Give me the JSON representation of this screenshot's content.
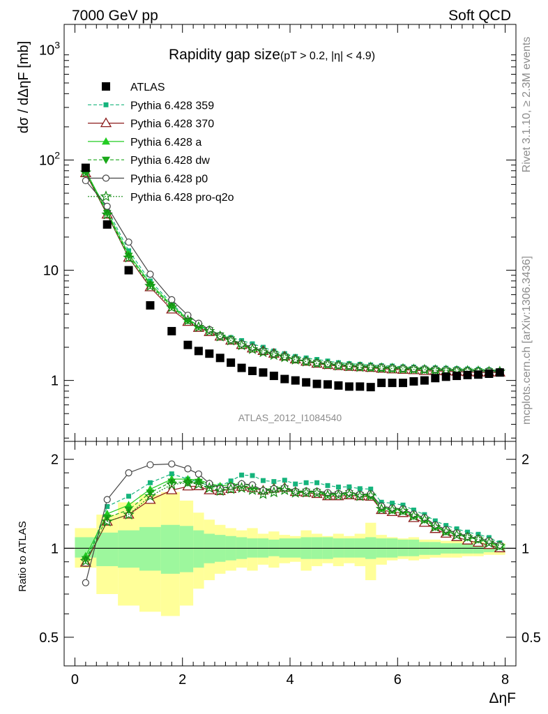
{
  "header": {
    "left": "7000 GeV pp",
    "right": "Soft QCD"
  },
  "side_labels": {
    "rivet": "Rivet 3.1.10, ≥ 2.3M events",
    "mcplots": "mcplots.cern.ch [arXiv:1306.3436]"
  },
  "chart_data": {
    "type": "scatter",
    "title": "Rapidity gap size",
    "title_cuts": "(pT > 0.2, |η| < 4.9)",
    "analysis_label": "ATLAS_2012_I1084540",
    "xlabel": "ΔηF",
    "ylabel": "dσ / dΔηF [mb]",
    "xlim": [
      -0.2,
      8.2
    ],
    "ylim": [
      0.28,
      1700
    ],
    "yscale": "log",
    "xticks": [
      "0",
      "2",
      "4",
      "6",
      "8"
    ],
    "yticks": [
      "1",
      "10",
      "102",
      "103"
    ],
    "legend_position": "top-left",
    "x": [
      0.2,
      0.6,
      1.0,
      1.4,
      1.8,
      2.1,
      2.3,
      2.5,
      2.7,
      2.9,
      3.1,
      3.3,
      3.5,
      3.7,
      3.9,
      4.1,
      4.3,
      4.5,
      4.7,
      4.9,
      5.1,
      5.3,
      5.5,
      5.7,
      5.9,
      6.1,
      6.3,
      6.5,
      6.7,
      6.9,
      7.1,
      7.3,
      7.5,
      7.7,
      7.9
    ],
    "series": [
      {
        "name": "ATLAS",
        "color": "#000000",
        "marker": "square",
        "line": "none",
        "values": [
          85,
          26,
          10,
          4.8,
          2.8,
          2.1,
          1.85,
          1.75,
          1.6,
          1.45,
          1.3,
          1.22,
          1.18,
          1.1,
          1.03,
          1.0,
          0.96,
          0.93,
          0.92,
          0.9,
          0.88,
          0.88,
          0.87,
          0.95,
          0.95,
          0.95,
          0.98,
          1.0,
          1.05,
          1.08,
          1.1,
          1.12,
          1.13,
          1.15,
          1.18
        ]
      },
      {
        "name": "Pythia 6.428 359",
        "color": "#16b47c",
        "marker": "small-square",
        "line": "dashed",
        "values": [
          75,
          36,
          15,
          8.0,
          5.0,
          3.6,
          3.1,
          2.85,
          2.6,
          2.45,
          2.3,
          2.15,
          2.0,
          1.85,
          1.75,
          1.65,
          1.6,
          1.55,
          1.5,
          1.45,
          1.42,
          1.4,
          1.38,
          1.36,
          1.35,
          1.33,
          1.32,
          1.3,
          1.3,
          1.29,
          1.28,
          1.27,
          1.26,
          1.25,
          1.23
        ]
      },
      {
        "name": "Pythia 6.428 370",
        "color": "#8b1a1a",
        "marker": "open-triangle",
        "line": "solid",
        "values": [
          76,
          32,
          13,
          7.0,
          4.4,
          3.4,
          3.0,
          2.75,
          2.5,
          2.3,
          2.1,
          1.95,
          1.85,
          1.75,
          1.65,
          1.55,
          1.48,
          1.42,
          1.38,
          1.35,
          1.33,
          1.32,
          1.3,
          1.28,
          1.26,
          1.25,
          1.24,
          1.22,
          1.22,
          1.21,
          1.2,
          1.19,
          1.18,
          1.18,
          1.18
        ]
      },
      {
        "name": "Pythia 6.428 a",
        "color": "#22cc22",
        "marker": "triangle",
        "line": "solid",
        "values": [
          80,
          34,
          14,
          7.6,
          4.8,
          3.6,
          3.15,
          2.9,
          2.6,
          2.38,
          2.15,
          1.98,
          1.86,
          1.76,
          1.66,
          1.56,
          1.5,
          1.45,
          1.41,
          1.38,
          1.36,
          1.34,
          1.32,
          1.3,
          1.29,
          1.28,
          1.27,
          1.26,
          1.25,
          1.24,
          1.24,
          1.23,
          1.22,
          1.22,
          1.21
        ]
      },
      {
        "name": "Pythia 6.428 dw",
        "color": "#1aa81a",
        "marker": "inverted-triangle",
        "line": "dashed",
        "values": [
          78,
          33,
          13.5,
          7.4,
          4.7,
          3.5,
          3.1,
          2.85,
          2.55,
          2.35,
          2.12,
          1.96,
          1.84,
          1.74,
          1.64,
          1.55,
          1.49,
          1.44,
          1.4,
          1.37,
          1.35,
          1.33,
          1.31,
          1.3,
          1.28,
          1.27,
          1.26,
          1.25,
          1.24,
          1.23,
          1.23,
          1.22,
          1.21,
          1.21,
          1.2
        ]
      },
      {
        "name": "Pythia 6.428 p0",
        "color": "#444444",
        "marker": "open-circle",
        "line": "solid",
        "values": [
          65,
          38,
          18,
          9.2,
          5.4,
          3.9,
          3.3,
          2.9,
          2.55,
          2.35,
          2.15,
          2.0,
          1.85,
          1.75,
          1.65,
          1.56,
          1.5,
          1.45,
          1.42,
          1.38,
          1.36,
          1.34,
          1.33,
          1.32,
          1.3,
          1.29,
          1.28,
          1.27,
          1.26,
          1.25,
          1.24,
          1.23,
          1.22,
          1.22,
          1.21
        ]
      },
      {
        "name": "Pythia 6.428 pro-q2o",
        "color": "#118a11",
        "marker": "open-star",
        "line": "dotted",
        "values": [
          77,
          32,
          13,
          7.2,
          4.6,
          3.5,
          3.05,
          2.8,
          2.5,
          2.3,
          2.08,
          1.92,
          1.8,
          1.7,
          1.62,
          1.54,
          1.48,
          1.43,
          1.39,
          1.36,
          1.34,
          1.32,
          1.31,
          1.29,
          1.28,
          1.27,
          1.26,
          1.25,
          1.24,
          1.23,
          1.22,
          1.22,
          1.21,
          1.2,
          1.2
        ]
      }
    ],
    "ratio": {
      "ylabel": "Ratio to ATLAS",
      "ylim": [
        0.4,
        2.3
      ],
      "yscale": "log",
      "yticks": [
        "0.5",
        "1",
        "2"
      ],
      "reference_line": 1.0,
      "band_inner": {
        "color": "#9df79d",
        "lo": [
          0.93,
          0.87,
          0.86,
          0.84,
          0.82,
          0.83,
          0.86,
          0.89,
          0.9,
          0.91,
          0.92,
          0.93,
          0.93,
          0.94,
          0.93,
          0.93,
          0.92,
          0.92,
          0.92,
          0.93,
          0.93,
          0.93,
          0.92,
          0.93,
          0.93,
          0.94,
          0.94,
          0.95,
          0.95,
          0.96,
          0.96,
          0.96,
          0.96,
          0.97,
          0.97
        ],
        "hi": [
          1.09,
          1.13,
          1.15,
          1.18,
          1.2,
          1.19,
          1.15,
          1.12,
          1.11,
          1.1,
          1.09,
          1.08,
          1.08,
          1.07,
          1.08,
          1.08,
          1.09,
          1.09,
          1.09,
          1.08,
          1.08,
          1.08,
          1.09,
          1.08,
          1.08,
          1.07,
          1.07,
          1.05,
          1.05,
          1.04,
          1.04,
          1.04,
          1.04,
          1.03,
          1.03
        ]
      },
      "band_outer": {
        "color": "#ffff99",
        "lo": [
          0.86,
          0.7,
          0.64,
          0.61,
          0.59,
          0.64,
          0.73,
          0.78,
          0.82,
          0.84,
          0.86,
          0.84,
          0.88,
          0.86,
          0.89,
          0.9,
          0.84,
          0.87,
          0.89,
          0.87,
          0.89,
          0.87,
          0.78,
          0.88,
          0.91,
          0.92,
          0.91,
          0.92,
          0.93,
          0.93,
          0.93,
          0.94,
          0.94,
          0.95,
          0.95
        ],
        "hi": [
          1.17,
          1.3,
          1.43,
          1.52,
          1.55,
          1.45,
          1.32,
          1.25,
          1.2,
          1.17,
          1.15,
          1.17,
          1.12,
          1.14,
          1.11,
          1.1,
          1.15,
          1.12,
          1.1,
          1.12,
          1.1,
          1.12,
          1.22,
          1.11,
          1.09,
          1.08,
          1.09,
          1.07,
          1.07,
          1.06,
          1.06,
          1.06,
          1.05,
          1.04,
          1.04
        ]
      }
    }
  }
}
